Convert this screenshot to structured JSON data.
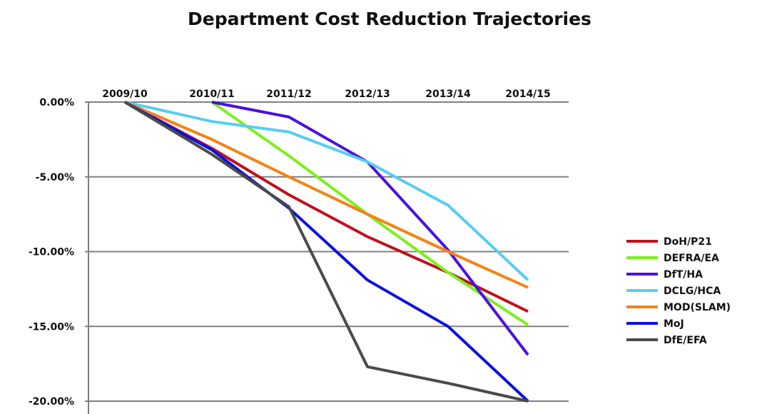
{
  "chart_data": {
    "type": "line",
    "title": "Department Cost Reduction Trajectories",
    "xlabel": "",
    "ylabel": "",
    "categories": [
      "2009/10",
      "2010/11",
      "2011/12",
      "2012/13",
      "2013/14",
      "2014/15"
    ],
    "ylim": [
      -20,
      0
    ],
    "yticks": [
      0,
      -5,
      -10,
      -15,
      -20
    ],
    "ytick_labels": [
      "0.00%",
      "-5.00%",
      "-10.00%",
      "-15.00%",
      "-20.00%"
    ],
    "grid": true,
    "legend_position": "right",
    "series": [
      {
        "name": "DoH/P21",
        "color": "#c0101e",
        "values": [
          0,
          -3.1,
          -6.2,
          -9.0,
          -11.4,
          -14.0
        ]
      },
      {
        "name": "DEFRA/EA",
        "color": "#7cf01c",
        "values": [
          null,
          0,
          -3.6,
          -7.5,
          -11.4,
          -14.9
        ]
      },
      {
        "name": "DfT/HA",
        "color": "#4a12e0",
        "values": [
          null,
          0,
          -1.0,
          -4.0,
          -9.9,
          -16.9
        ]
      },
      {
        "name": "DCLG/HCA",
        "color": "#56cdf2",
        "values": [
          0,
          -1.3,
          -2.0,
          -4.0,
          -6.9,
          -11.9
        ]
      },
      {
        "name": "MOD(SLAM)",
        "color": "#f48318",
        "values": [
          0,
          -2.5,
          -5.0,
          -7.5,
          -10.0,
          -12.4
        ]
      },
      {
        "name": "MoJ",
        "color": "#0a10e0",
        "values": [
          0,
          -3.2,
          -7.1,
          -11.9,
          -15.0,
          -20.0
        ]
      },
      {
        "name": "DfE/EFA",
        "color": "#4a4a4a",
        "values": [
          0,
          -3.5,
          -7.0,
          -17.7,
          -18.8,
          -20.0
        ]
      }
    ]
  }
}
